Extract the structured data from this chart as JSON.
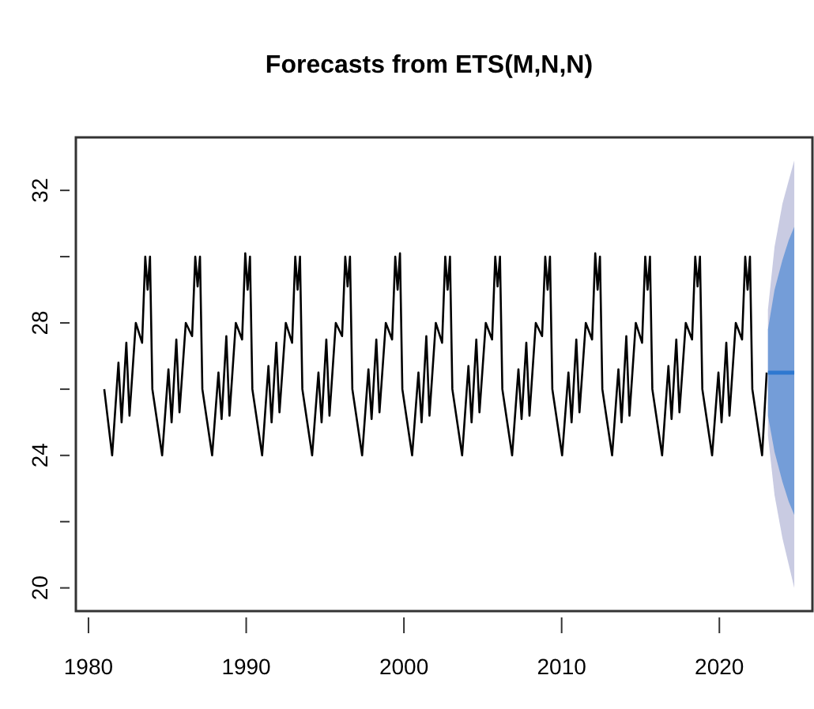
{
  "chart_data": {
    "type": "line",
    "title": "Forecasts from ETS(M,N,N)",
    "xlim": [
      1979.2,
      2025.9
    ],
    "xticks": [
      1980,
      1990,
      2000,
      2010,
      2020
    ],
    "ylim": [
      19.3,
      33.6
    ],
    "yticks": [
      20,
      {
        "value": 22,
        "label": null
      },
      24,
      {
        "value": 26,
        "label": null
      },
      28,
      {
        "value": 30,
        "label": null
      },
      32
    ],
    "series": [
      {
        "color": "#000000",
        "x": [
          1981.0,
          1981.5,
          1981.9,
          1982.1,
          1982.4,
          1982.6,
          1983.0,
          1983.4,
          1983.6,
          1983.75,
          1983.9,
          1984.05,
          1984.67,
          1985.07,
          1985.27,
          1985.57,
          1985.77,
          1986.17,
          1986.57,
          1986.77,
          1986.92,
          1987.07,
          1987.22,
          1987.84,
          1988.24,
          1988.44,
          1988.74,
          1988.94,
          1989.34,
          1989.74,
          1989.94,
          1990.09,
          1990.24,
          1990.39,
          1991.01,
          1991.41,
          1991.61,
          1991.91,
          1992.11,
          1992.51,
          1992.91,
          1993.11,
          1993.26,
          1993.41,
          1993.56,
          1994.18,
          1994.58,
          1994.78,
          1995.08,
          1995.28,
          1995.68,
          1996.08,
          1996.28,
          1996.43,
          1996.58,
          1996.73,
          1997.35,
          1997.75,
          1997.95,
          1998.25,
          1998.45,
          1998.85,
          1999.25,
          1999.45,
          1999.6,
          1999.75,
          1999.9,
          2000.52,
          2000.92,
          2001.12,
          2001.42,
          2001.62,
          2002.02,
          2002.42,
          2002.62,
          2002.77,
          2002.92,
          2003.07,
          2003.69,
          2004.09,
          2004.29,
          2004.59,
          2004.79,
          2005.19,
          2005.59,
          2005.79,
          2005.94,
          2006.09,
          2006.24,
          2006.86,
          2007.26,
          2007.46,
          2007.76,
          2007.96,
          2008.36,
          2008.76,
          2008.96,
          2009.11,
          2009.26,
          2009.41,
          2010.03,
          2010.43,
          2010.63,
          2010.93,
          2011.13,
          2011.53,
          2011.93,
          2012.13,
          2012.28,
          2012.43,
          2012.58,
          2013.2,
          2013.6,
          2013.8,
          2014.1,
          2014.3,
          2014.7,
          2015.1,
          2015.3,
          2015.45,
          2015.6,
          2015.75,
          2016.37,
          2016.77,
          2016.97,
          2017.27,
          2017.47,
          2017.87,
          2018.27,
          2018.47,
          2018.62,
          2018.77,
          2018.92,
          2019.54,
          2019.94,
          2020.14,
          2020.44,
          2020.64,
          2021.04,
          2021.44,
          2021.64,
          2021.79,
          2021.94,
          2022.09,
          2022.71,
          2023.0
        ],
        "values": [
          26,
          24,
          26.8,
          25,
          27.4,
          25.2,
          28,
          27.4,
          30,
          29,
          30,
          26,
          24,
          26.6,
          25,
          27.5,
          25.3,
          28,
          27.6,
          30,
          29.1,
          30,
          26,
          24,
          26.5,
          25.1,
          27.6,
          25.2,
          28,
          27.5,
          30.1,
          29,
          30,
          26,
          24,
          26.7,
          25,
          27.4,
          25.3,
          28,
          27.4,
          30,
          29,
          30,
          26,
          24,
          26.5,
          25,
          27.5,
          25.2,
          28,
          27.6,
          30,
          29.1,
          30,
          26,
          24,
          26.6,
          25.1,
          27.5,
          25.3,
          28,
          27.5,
          30,
          29,
          30.1,
          26,
          24,
          26.5,
          25,
          27.6,
          25.2,
          28,
          27.4,
          30,
          29,
          30,
          26,
          24,
          26.7,
          25,
          27.5,
          25.3,
          28,
          27.5,
          30,
          29.1,
          30,
          26,
          24,
          26.6,
          25.1,
          27.4,
          25.2,
          28,
          27.6,
          30,
          29,
          30,
          26,
          24,
          26.5,
          25,
          27.5,
          25.3,
          28,
          27.5,
          30.1,
          29,
          30,
          26,
          24,
          26.6,
          25,
          27.6,
          25.2,
          28,
          27.4,
          30,
          29,
          30,
          26,
          24,
          26.7,
          25.1,
          27.5,
          25.3,
          28,
          27.5,
          30,
          29.1,
          30,
          26,
          24,
          26.5,
          25,
          27.4,
          25.2,
          28,
          27.5,
          30,
          29,
          30,
          26,
          24,
          26.5
        ]
      },
      {
        "color": "#c9cbe2",
        "x": [
          2023.08,
          2023.5,
          2024.0,
          2024.4,
          2024.75
        ],
        "values": [
          null,
          null,
          null,
          null,
          null
        ],
        "lower": [
          24.6,
          22.8,
          21.5,
          20.7,
          20.0
        ],
        "upper": [
          28.4,
          30.3,
          31.6,
          32.3,
          32.9
        ]
      },
      {
        "color": "#2e78d0",
        "x": [
          2023.08,
          2023.5,
          2024.0,
          2024.4,
          2024.75
        ],
        "values": [
          26.5,
          26.5,
          26.5,
          26.5,
          26.5
        ],
        "lower": [
          25.2,
          24.1,
          23.2,
          22.6,
          22.2
        ],
        "upper": [
          27.8,
          29.0,
          29.9,
          30.5,
          30.9
        ]
      }
    ]
  }
}
